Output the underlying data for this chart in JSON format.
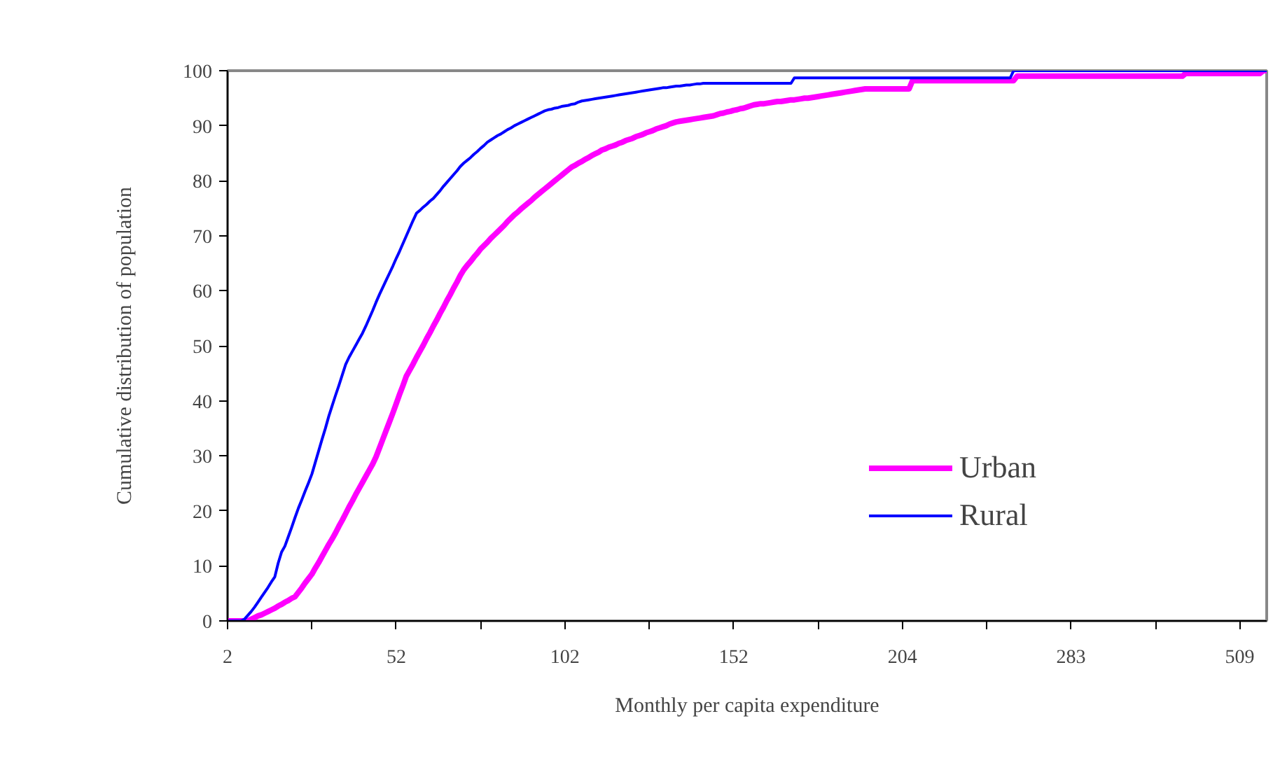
{
  "chart_data": {
    "type": "line",
    "xlabel": "Monthly per capita expenditure",
    "ylabel": "Cumulative distribution of population",
    "categories": [
      "2",
      null,
      null,
      null,
      null,
      null,
      null,
      null,
      null,
      null,
      null,
      null,
      null,
      null,
      null,
      null,
      null,
      null,
      null,
      null,
      null,
      null,
      null,
      null,
      null,
      null,
      null,
      null,
      null,
      null,
      null,
      null,
      null,
      null,
      null,
      null,
      null,
      null,
      null,
      null,
      null,
      null,
      null,
      null,
      null,
      null,
      null,
      null,
      null,
      null,
      "52",
      null,
      null,
      null,
      null,
      null,
      null,
      null,
      null,
      null,
      null,
      null,
      null,
      null,
      null,
      null,
      null,
      null,
      null,
      null,
      null,
      null,
      null,
      null,
      null,
      null,
      null,
      null,
      null,
      null,
      null,
      null,
      null,
      null,
      null,
      null,
      null,
      null,
      null,
      null,
      null,
      null,
      null,
      null,
      null,
      null,
      null,
      null,
      null,
      null,
      "102",
      null,
      null,
      null,
      null,
      null,
      null,
      null,
      null,
      null,
      null,
      null,
      null,
      null,
      null,
      null,
      null,
      null,
      null,
      null,
      null,
      null,
      null,
      null,
      null,
      null,
      null,
      null,
      null,
      null,
      null,
      null,
      null,
      null,
      null,
      null,
      null,
      null,
      null,
      null,
      null,
      null,
      null,
      null,
      null,
      null,
      null,
      null,
      null,
      null,
      "152",
      null,
      null,
      null,
      null,
      null,
      null,
      null,
      null,
      null,
      null,
      null,
      null,
      null,
      null,
      null,
      null,
      null,
      null,
      null,
      null,
      null,
      null,
      null,
      null,
      null,
      null,
      null,
      null,
      null,
      null,
      null,
      null,
      null,
      null,
      null,
      null,
      null,
      null,
      null,
      null,
      null,
      null,
      null,
      null,
      null,
      null,
      null,
      null,
      null,
      "204",
      null,
      null,
      null,
      null,
      null,
      null,
      null,
      null,
      null,
      null,
      null,
      null,
      null,
      null,
      null,
      null,
      null,
      null,
      null,
      null,
      null,
      null,
      null,
      null,
      null,
      null,
      null,
      null,
      null,
      null,
      null,
      null,
      null,
      null,
      null,
      null,
      null,
      null,
      null,
      null,
      null,
      null,
      null,
      null,
      null,
      null,
      null,
      null,
      null,
      "283",
      null,
      null,
      null,
      null,
      null,
      null,
      null,
      null,
      null,
      null,
      null,
      null,
      null,
      null,
      null,
      null,
      null,
      null,
      null,
      null,
      null,
      null,
      null,
      null,
      null,
      null,
      null,
      null,
      null,
      null,
      null,
      null,
      null,
      null,
      null,
      null,
      null,
      null,
      null,
      null,
      null,
      null,
      null,
      null,
      null,
      null,
      null,
      null,
      null,
      "509",
      null,
      null,
      null,
      null,
      null,
      null,
      null,
      null
    ],
    "ylim": [
      0,
      100
    ],
    "yticks": [
      0,
      10,
      20,
      30,
      40,
      50,
      60,
      70,
      80,
      90,
      100
    ],
    "grid": false,
    "legend": "right",
    "marker": "none",
    "line_style": "solid",
    "series": [
      {
        "name": "Urban",
        "color": "#ff00ff",
        "values": [
          0,
          0,
          0,
          0,
          0,
          0,
          0,
          0.3,
          0.6,
          0.9,
          1.1,
          1.4,
          1.7,
          2,
          2.3,
          2.7,
          3,
          3.4,
          3.7,
          4.1,
          4.4,
          5.2,
          6,
          6.9,
          7.7,
          8.5,
          9.6,
          10.6,
          11.7,
          12.8,
          13.9,
          14.9,
          16,
          17.2,
          18.3,
          19.5,
          20.7,
          21.8,
          23,
          24.1,
          25.2,
          26.3,
          27.4,
          28.5,
          29.8,
          31.4,
          33,
          34.6,
          36.2,
          37.8,
          39.5,
          41.2,
          42.8,
          44.5,
          45.6,
          46.7,
          47.9,
          49,
          50.1,
          51.3,
          52.4,
          53.6,
          54.7,
          55.9,
          57,
          58.2,
          59.3,
          60.5,
          61.6,
          62.8,
          63.8,
          64.6,
          65.3,
          66.1,
          66.8,
          67.6,
          68.2,
          68.8,
          69.5,
          70.1,
          70.7,
          71.3,
          71.9,
          72.6,
          73.2,
          73.8,
          74.3,
          74.9,
          75.4,
          75.9,
          76.4,
          77,
          77.5,
          78,
          78.5,
          79,
          79.5,
          80,
          80.5,
          81,
          81.5,
          82,
          82.5,
          82.8,
          83.2,
          83.5,
          83.9,
          84.2,
          84.6,
          84.9,
          85.2,
          85.6,
          85.8,
          86.1,
          86.3,
          86.5,
          86.8,
          87,
          87.3,
          87.5,
          87.7,
          88,
          88.2,
          88.4,
          88.7,
          88.9,
          89.1,
          89.4,
          89.6,
          89.8,
          90,
          90.3,
          90.5,
          90.7,
          90.8,
          90.9,
          91,
          91.1,
          91.2,
          91.3,
          91.4,
          91.5,
          91.6,
          91.7,
          91.8,
          92,
          92.2,
          92.3,
          92.5,
          92.6,
          92.8,
          92.9,
          93.1,
          93.2,
          93.4,
          93.6,
          93.8,
          93.9,
          94,
          94,
          94.1,
          94.2,
          94.3,
          94.4,
          94.4,
          94.5,
          94.6,
          94.7,
          94.7,
          94.8,
          94.9,
          95,
          95,
          95.1,
          95.2,
          95.3,
          95.4,
          95.5,
          95.6,
          95.7,
          95.8,
          95.9,
          96,
          96.1,
          96.2,
          96.3,
          96.4,
          96.5,
          96.6,
          96.7,
          96.7,
          96.7,
          96.7,
          96.7,
          96.7,
          96.7,
          96.7,
          96.7,
          96.7,
          96.7,
          96.7,
          96.7,
          96.7,
          98.2,
          98.2,
          98.2,
          98.2,
          98.2,
          98.2,
          98.2,
          98.2,
          98.2,
          98.2,
          98.2,
          98.2,
          98.2,
          98.2,
          98.2,
          98.2,
          98.2,
          98.2,
          98.2,
          98.2,
          98.2,
          98.2,
          98.2,
          98.2,
          98.2,
          98.2,
          98.2,
          98.2,
          98.2,
          98.2,
          98.2,
          99,
          99,
          99,
          99,
          99,
          99,
          99,
          99,
          99,
          99,
          99,
          99,
          99,
          99,
          99,
          99,
          99,
          99,
          99,
          99,
          99,
          99,
          99,
          99,
          99,
          99,
          99,
          99,
          99,
          99,
          99,
          99,
          99,
          99,
          99,
          99,
          99,
          99,
          99,
          99,
          99,
          99,
          99,
          99,
          99,
          99,
          99,
          99,
          99,
          99,
          99.5,
          99.5,
          99.5,
          99.5,
          99.5,
          99.5,
          99.5,
          99.5,
          99.5,
          99.5,
          99.5,
          99.5,
          99.5,
          99.5,
          99.5,
          99.5,
          99.5,
          99.5,
          99.5,
          99.5,
          99.5,
          99.5,
          99.5,
          100,
          100
        ]
      },
      {
        "name": "Rural",
        "color": "#0000ff",
        "values": [
          0,
          0,
          0,
          0,
          0,
          0.3,
          1,
          1.7,
          2.5,
          3.4,
          4.3,
          5.2,
          6.1,
          7.1,
          8,
          10.5,
          12.5,
          13.6,
          15.3,
          17,
          18.8,
          20.5,
          22,
          23.6,
          25.1,
          26.7,
          28.8,
          30.9,
          33,
          35,
          37.2,
          39.1,
          41,
          42.8,
          44.7,
          46.6,
          47.9,
          49,
          50.1,
          51.2,
          52.3,
          53.6,
          55,
          56.4,
          57.9,
          59.3,
          60.6,
          61.9,
          63.2,
          64.5,
          65.9,
          67.2,
          68.6,
          70,
          71.4,
          72.8,
          74.1,
          74.6,
          75.2,
          75.7,
          76.3,
          76.8,
          77.5,
          78.2,
          79,
          79.7,
          80.4,
          81.1,
          81.8,
          82.6,
          83.2,
          83.7,
          84.2,
          84.8,
          85.3,
          85.9,
          86.4,
          87,
          87.4,
          87.8,
          88.2,
          88.5,
          88.9,
          89.3,
          89.6,
          90,
          90.3,
          90.6,
          90.9,
          91.2,
          91.5,
          91.8,
          92.1,
          92.4,
          92.7,
          92.9,
          93,
          93.2,
          93.3,
          93.5,
          93.6,
          93.7,
          93.9,
          94,
          94.3,
          94.5,
          94.6,
          94.7,
          94.8,
          94.9,
          95,
          95.1,
          95.2,
          95.3,
          95.4,
          95.5,
          95.6,
          95.7,
          95.8,
          95.9,
          96,
          96.1,
          96.2,
          96.3,
          96.4,
          96.5,
          96.6,
          96.7,
          96.8,
          96.9,
          96.9,
          97,
          97.1,
          97.2,
          97.2,
          97.3,
          97.4,
          97.4,
          97.5,
          97.6,
          97.6,
          97.7,
          97.7,
          97.7,
          97.7,
          97.7,
          97.7,
          97.7,
          97.7,
          97.7,
          97.7,
          97.7,
          97.7,
          97.7,
          97.7,
          97.7,
          97.7,
          97.7,
          97.7,
          97.7,
          97.7,
          97.7,
          97.7,
          97.7,
          97.7,
          97.7,
          97.7,
          97.7,
          98.7,
          98.7,
          98.7,
          98.7,
          98.7,
          98.7,
          98.7,
          98.7,
          98.7,
          98.7,
          98.7,
          98.7,
          98.7,
          98.7,
          98.7,
          98.7,
          98.7,
          98.7,
          98.7,
          98.7,
          98.7,
          98.7,
          98.7,
          98.7,
          98.7,
          98.7,
          98.7,
          98.7,
          98.7,
          98.7,
          98.7,
          98.7,
          98.7,
          98.7,
          98.7,
          98.7,
          98.7,
          98.7,
          98.7,
          98.7,
          98.7,
          98.7,
          98.7,
          98.7,
          98.7,
          98.7,
          98.7,
          98.7,
          98.7,
          98.7,
          98.7,
          98.7,
          98.7,
          98.7,
          98.7,
          98.7,
          98.7,
          98.7,
          98.7,
          98.7,
          98.7,
          98.7,
          98.7,
          98.7,
          98.7,
          100,
          100,
          100,
          100,
          100,
          100,
          100,
          100,
          100,
          100,
          100,
          100,
          100,
          100,
          100,
          100,
          100,
          100,
          100,
          100,
          100,
          100,
          100,
          100,
          100,
          100,
          100,
          100,
          100,
          100,
          100,
          100,
          100,
          100,
          100,
          100,
          100,
          100,
          100,
          100,
          100,
          100,
          100,
          100,
          100,
          100,
          100,
          100,
          100,
          100,
          100,
          100,
          100,
          100,
          100,
          100,
          100,
          100,
          100,
          100,
          100,
          100,
          100,
          100,
          100,
          100,
          100,
          100,
          100,
          100,
          100,
          100,
          100,
          100,
          100,
          100
        ]
      }
    ]
  }
}
